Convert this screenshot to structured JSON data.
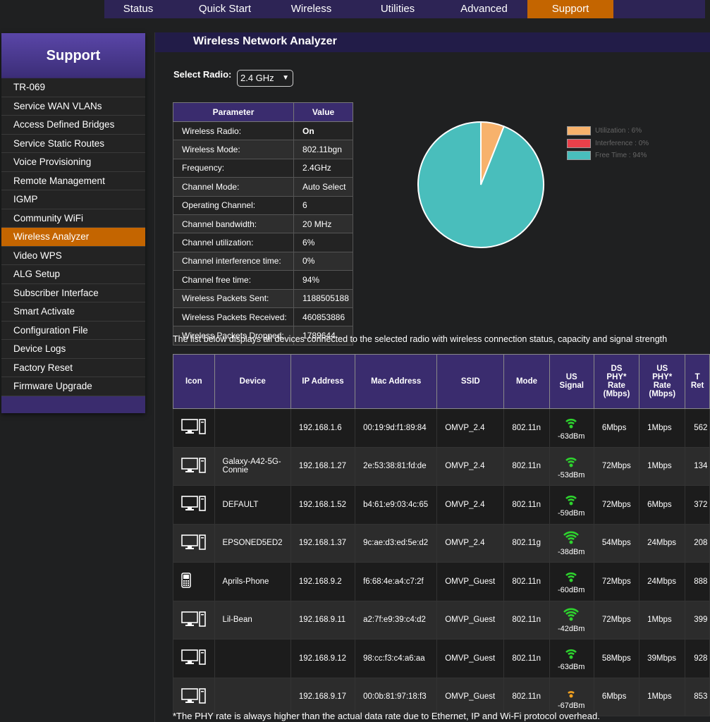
{
  "nav": {
    "tabs": [
      "Status",
      "Quick Start",
      "Wireless",
      "Utilities",
      "Advanced",
      "Support"
    ],
    "active": "Support"
  },
  "sidebar": {
    "title": "Support",
    "items": [
      "TR-069",
      "Service WAN VLANs",
      "Access Defined Bridges",
      "Service Static Routes",
      "Voice Provisioning",
      "Remote Management",
      "IGMP",
      "Community WiFi",
      "Wireless Analyzer",
      "Video WPS",
      "ALG Setup",
      "Subscriber Interface",
      "Smart Activate",
      "Configuration File",
      "Device Logs",
      "Factory Reset",
      "Firmware Upgrade"
    ],
    "active": "Wireless Analyzer"
  },
  "page": {
    "title": "Wireless Network Analyzer",
    "select_radio_label": "Select Radio:",
    "select_radio_value": "2.4 GHz",
    "list_description": "The list below displays all devices connected to the selected radio with wireless connection status, capacity and signal strength",
    "footnote": "*The PHY rate is always higher than the actual data rate due to Ethernet, IP and Wi-Fi protocol overhead."
  },
  "params": {
    "headers": [
      "Parameter",
      "Value"
    ],
    "rows": [
      [
        "Wireless Radio:",
        "On"
      ],
      [
        "Wireless Mode:",
        "802.11bgn"
      ],
      [
        "Frequency:",
        "2.4GHz"
      ],
      [
        "Channel Mode:",
        "Auto Select"
      ],
      [
        "Operating Channel:",
        "6"
      ],
      [
        "Channel bandwidth:",
        "20 MHz"
      ],
      [
        "Channel utilization:",
        "6%"
      ],
      [
        "Channel interference time:",
        "0%"
      ],
      [
        "Channel free time:",
        "94%"
      ],
      [
        "Wireless Packets Sent:",
        "1188505188"
      ],
      [
        "Wireless Packets Received:",
        "460853886"
      ],
      [
        "Wireless Packets Dropped:",
        "1789644"
      ]
    ]
  },
  "chart_data": {
    "type": "pie",
    "slices": [
      {
        "label": "Utilization :  6%",
        "value": 6,
        "color": "#f7b26c"
      },
      {
        "label": "Interference :  0%",
        "value": 0,
        "color": "#e8404a"
      },
      {
        "label": "Free Time :  94%",
        "value": 94,
        "color": "#49bebc"
      }
    ]
  },
  "devices": {
    "headers": [
      "Icon",
      "Device",
      "IP Address",
      "Mac Address",
      "SSID",
      "Mode",
      "US Signal",
      "DS PHY* Rate (Mbps)",
      "US PHY* Rate (Mbps)",
      "T Ret"
    ],
    "rows": [
      {
        "icon": "desktop-icon",
        "device": "",
        "ip": "192.168.1.6",
        "mac": "00:19:9d:f1:89:84",
        "ssid": "OMVP_2.4",
        "mode": "802.11n",
        "signal": "-63dBm",
        "signal_level": 3,
        "signal_color": "#2ed32e",
        "ds": "6Mbps",
        "us": "1Mbps",
        "t": "562"
      },
      {
        "icon": "desktop-icon",
        "device": "Galaxy-A42-5G-Connie",
        "ip": "192.168.1.27",
        "mac": "2e:53:38:81:fd:de",
        "ssid": "OMVP_2.4",
        "mode": "802.11n",
        "signal": "-53dBm",
        "signal_level": 3,
        "signal_color": "#2ed32e",
        "ds": "72Mbps",
        "us": "1Mbps",
        "t": "134"
      },
      {
        "icon": "desktop-icon",
        "device": "DEFAULT",
        "ip": "192.168.1.52",
        "mac": "b4:61:e9:03:4c:65",
        "ssid": "OMVP_2.4",
        "mode": "802.11n",
        "signal": "-59dBm",
        "signal_level": 3,
        "signal_color": "#2ed32e",
        "ds": "72Mbps",
        "us": "6Mbps",
        "t": "372"
      },
      {
        "icon": "desktop-icon",
        "device": "EPSONED5ED2",
        "ip": "192.168.1.37",
        "mac": "9c:ae:d3:ed:5e:d2",
        "ssid": "OMVP_2.4",
        "mode": "802.11g",
        "signal": "-38dBm",
        "signal_level": 4,
        "signal_color": "#2ed32e",
        "ds": "54Mbps",
        "us": "24Mbps",
        "t": "208"
      },
      {
        "icon": "phone-icon",
        "device": "Aprils-Phone",
        "ip": "192.168.9.2",
        "mac": "f6:68:4e:a4:c7:2f",
        "ssid": "OMVP_Guest",
        "mode": "802.11n",
        "signal": "-60dBm",
        "signal_level": 3,
        "signal_color": "#2ed32e",
        "ds": "72Mbps",
        "us": "24Mbps",
        "t": "888"
      },
      {
        "icon": "desktop-icon",
        "device": "Lil-Bean",
        "ip": "192.168.9.11",
        "mac": "a2:7f:e9:39:c4:d2",
        "ssid": "OMVP_Guest",
        "mode": "802.11n",
        "signal": "-42dBm",
        "signal_level": 4,
        "signal_color": "#2ed32e",
        "ds": "72Mbps",
        "us": "1Mbps",
        "t": "399"
      },
      {
        "icon": "desktop-icon",
        "device": "",
        "ip": "192.168.9.12",
        "mac": "98:cc:f3:c4:a6:aa",
        "ssid": "OMVP_Guest",
        "mode": "802.11n",
        "signal": "-63dBm",
        "signal_level": 3,
        "signal_color": "#2ed32e",
        "ds": "58Mbps",
        "us": "39Mbps",
        "t": "928"
      },
      {
        "icon": "desktop-icon",
        "device": "",
        "ip": "192.168.9.17",
        "mac": "00:0b:81:97:18:f3",
        "ssid": "OMVP_Guest",
        "mode": "802.11n",
        "signal": "-67dBm",
        "signal_level": 2,
        "signal_color": "#f0a020",
        "ds": "6Mbps",
        "us": "1Mbps",
        "t": "853"
      }
    ]
  }
}
